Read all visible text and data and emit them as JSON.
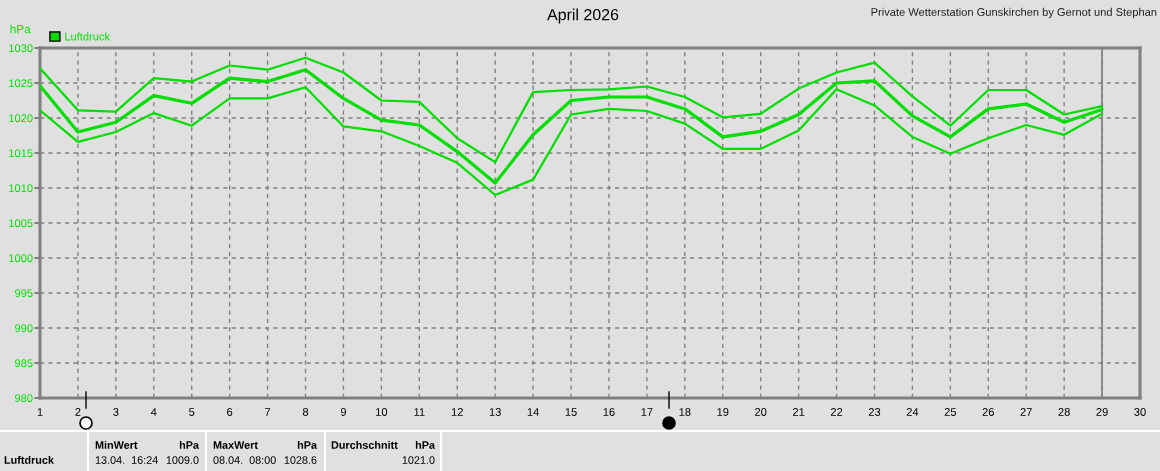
{
  "chart_data": {
    "type": "line",
    "title": "April 2026",
    "ylabel": "hPa",
    "x": [
      1,
      2,
      3,
      4,
      5,
      6,
      7,
      8,
      9,
      10,
      11,
      12,
      13,
      14,
      15,
      16,
      17,
      18,
      19,
      20,
      21,
      22,
      23,
      24,
      25,
      26,
      27,
      28,
      29
    ],
    "xlim": [
      1,
      30
    ],
    "xticks": [
      1,
      2,
      3,
      4,
      5,
      6,
      7,
      8,
      9,
      10,
      11,
      12,
      13,
      14,
      15,
      16,
      17,
      18,
      19,
      20,
      21,
      22,
      23,
      24,
      25,
      26,
      27,
      28,
      29,
      30
    ],
    "ylim": [
      980,
      1030
    ],
    "yticks": [
      980,
      985,
      990,
      995,
      1000,
      1005,
      1010,
      1015,
      1020,
      1025,
      1030
    ],
    "grid": true,
    "legend": "top left",
    "marker": "none",
    "line_style": "solid",
    "series": [
      {
        "color": "#00dd00",
        "values": [
          1027.1,
          1021.1,
          1020.9,
          1025.7,
          1025.2,
          1027.5,
          1026.9,
          1028.6,
          1026.5,
          1022.5,
          1022.3,
          1017.1,
          1013.7,
          1023.7,
          1024.0,
          1024.1,
          1024.5,
          1023.0,
          1020.1,
          1020.6,
          1024.2,
          1026.5,
          1027.9,
          1023.1,
          1018.9,
          1024.0,
          1024.0,
          1020.5,
          1021.7
        ]
      },
      {
        "name": "Luftdruck",
        "color": "#00dd00",
        "values": [
          1024.6,
          1018.0,
          1019.4,
          1023.2,
          1022.1,
          1025.7,
          1025.2,
          1026.9,
          1022.8,
          1019.7,
          1019.0,
          1015.2,
          1010.7,
          1017.6,
          1022.5,
          1023.0,
          1023.0,
          1021.3,
          1017.3,
          1018.1,
          1020.5,
          1025.0,
          1025.3,
          1020.3,
          1017.3,
          1021.3,
          1022.0,
          1019.4,
          1021.2
        ]
      },
      {
        "color": "#00dd00",
        "values": [
          1021.1,
          1016.6,
          1018.0,
          1020.7,
          1018.9,
          1022.8,
          1022.8,
          1024.4,
          1018.8,
          1018.1,
          1016.0,
          1013.6,
          1009.0,
          1011.2,
          1020.5,
          1021.3,
          1021.0,
          1019.2,
          1015.6,
          1015.6,
          1018.2,
          1024.1,
          1021.8,
          1017.3,
          1014.9,
          1017.1,
          1019.0,
          1017.6,
          1020.6
        ]
      }
    ],
    "ref_lines": [
      {
        "axis": "x",
        "value": 29,
        "color": "#808080",
        "line_style": "solid"
      }
    ],
    "annotations": [
      "Private Wetterstation Gunskirchen by Gernot und Stephan",
      "Luftdruck",
      "MinWert",
      "hPa",
      "13.04.  16:24",
      "1009.0",
      "MaxWert",
      "hPa",
      "08.04.  08:00",
      "1028.6",
      "Durchschnitt",
      "hPa",
      "1021.0"
    ]
  }
}
